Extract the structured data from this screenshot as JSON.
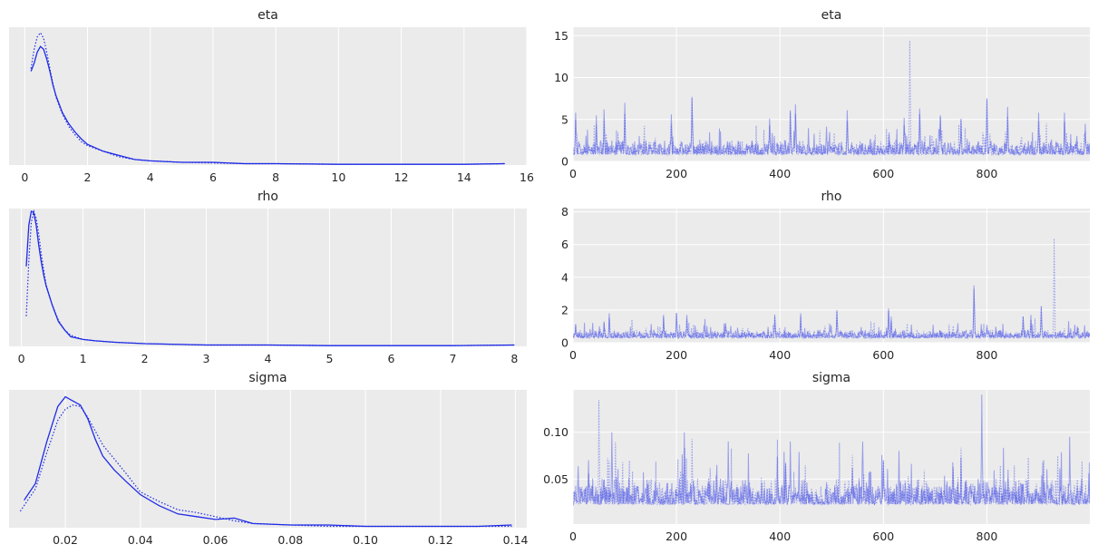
{
  "chart_data": [
    {
      "type": "line",
      "title": "eta",
      "kind": "kde",
      "xlim": [
        -0.5,
        16
      ],
      "ylim": [
        0,
        1
      ],
      "xticks": [
        0,
        2,
        4,
        6,
        8,
        10,
        12,
        14,
        16
      ],
      "yticks": [],
      "grid": "on",
      "series": [
        {
          "style": "solid",
          "x": [
            0.2,
            0.3,
            0.4,
            0.5,
            0.6,
            0.7,
            0.8,
            0.9,
            1.0,
            1.2,
            1.4,
            1.6,
            1.8,
            2.0,
            2.5,
            3.0,
            3.5,
            4.0,
            5.0,
            6.0,
            7.0,
            8.0,
            10.0,
            12.0,
            14.0,
            15.3
          ],
          "y": [
            0.68,
            0.74,
            0.82,
            0.86,
            0.84,
            0.77,
            0.68,
            0.58,
            0.5,
            0.38,
            0.3,
            0.24,
            0.19,
            0.15,
            0.1,
            0.07,
            0.04,
            0.03,
            0.02,
            0.02,
            0.01,
            0.01,
            0.005,
            0.005,
            0.005,
            0.01
          ]
        },
        {
          "style": "dotted",
          "x": [
            0.2,
            0.3,
            0.4,
            0.5,
            0.6,
            0.7,
            0.8,
            0.9,
            1.0,
            1.2,
            1.4,
            1.6,
            1.8,
            2.0,
            2.5,
            3.0,
            3.5,
            4.0,
            5.0,
            6.0,
            7.0,
            8.0,
            10.0,
            12.0,
            14.0,
            15.3
          ],
          "y": [
            0.7,
            0.84,
            0.93,
            0.96,
            0.92,
            0.82,
            0.7,
            0.59,
            0.49,
            0.37,
            0.28,
            0.22,
            0.17,
            0.14,
            0.1,
            0.06,
            0.04,
            0.03,
            0.02,
            0.015,
            0.01,
            0.01,
            0.005,
            0.005,
            0.005,
            0.01
          ]
        }
      ]
    },
    {
      "type": "line",
      "title": "eta",
      "kind": "trace",
      "xlim": [
        0,
        999
      ],
      "ylim": [
        0,
        16
      ],
      "xticks": [
        0,
        200,
        400,
        600,
        800
      ],
      "yticks": [
        0,
        5,
        10,
        15
      ],
      "grid": "on",
      "seed": 11,
      "base": 1.0,
      "noise": 1.2,
      "spikes": [
        [
          5,
          5.8
        ],
        [
          45,
          5.5
        ],
        [
          60,
          6.2
        ],
        [
          100,
          7.0
        ],
        [
          190,
          5.6
        ],
        [
          230,
          7.6
        ],
        [
          380,
          5.1
        ],
        [
          420,
          6.1
        ],
        [
          430,
          6.8
        ],
        [
          530,
          6.1
        ],
        [
          640,
          5.2
        ],
        [
          651,
          15.3
        ],
        [
          670,
          6.3
        ],
        [
          710,
          5.5
        ],
        [
          750,
          5.0
        ],
        [
          800,
          7.5
        ],
        [
          840,
          6.5
        ],
        [
          900,
          5.8
        ],
        [
          950,
          5.8
        ],
        [
          990,
          4.5
        ]
      ]
    },
    {
      "type": "line",
      "title": "rho",
      "kind": "kde",
      "xlim": [
        -0.2,
        8.2
      ],
      "ylim": [
        0,
        1
      ],
      "xticks": [
        0,
        1,
        2,
        3,
        4,
        5,
        6,
        7,
        8
      ],
      "yticks": [],
      "grid": "on",
      "series": [
        {
          "style": "solid",
          "x": [
            0.08,
            0.12,
            0.16,
            0.2,
            0.24,
            0.28,
            0.32,
            0.36,
            0.4,
            0.5,
            0.6,
            0.7,
            0.8,
            1.0,
            1.2,
            1.5,
            2.0,
            3.0,
            4.0,
            5.0,
            6.0,
            7.0,
            8.0
          ],
          "y": [
            0.58,
            0.88,
            0.98,
            0.97,
            0.88,
            0.74,
            0.62,
            0.52,
            0.44,
            0.3,
            0.18,
            0.12,
            0.07,
            0.05,
            0.04,
            0.03,
            0.02,
            0.01,
            0.01,
            0.005,
            0.005,
            0.005,
            0.01
          ]
        },
        {
          "style": "dotted",
          "x": [
            0.08,
            0.12,
            0.16,
            0.2,
            0.24,
            0.28,
            0.32,
            0.36,
            0.4,
            0.5,
            0.6,
            0.7,
            0.8,
            1.0,
            1.2,
            1.5,
            2.0,
            3.0,
            4.0,
            5.0,
            6.0,
            7.0,
            8.0
          ],
          "y": [
            0.22,
            0.62,
            0.9,
            0.98,
            0.93,
            0.82,
            0.68,
            0.56,
            0.45,
            0.3,
            0.19,
            0.12,
            0.08,
            0.05,
            0.04,
            0.03,
            0.02,
            0.01,
            0.01,
            0.005,
            0.005,
            0.005,
            0.01
          ]
        }
      ]
    },
    {
      "type": "line",
      "title": "rho",
      "kind": "trace",
      "xlim": [
        0,
        999
      ],
      "ylim": [
        0,
        8.2
      ],
      "xticks": [
        0,
        200,
        400,
        600,
        800
      ],
      "yticks": [
        0,
        2,
        4,
        6,
        8
      ],
      "grid": "on",
      "seed": 23,
      "base": 0.35,
      "noise": 0.35,
      "spikes": [
        [
          5,
          1.1
        ],
        [
          60,
          1.3
        ],
        [
          70,
          1.8
        ],
        [
          175,
          1.7
        ],
        [
          200,
          1.8
        ],
        [
          220,
          1.7
        ],
        [
          295,
          1.2
        ],
        [
          390,
          1.7
        ],
        [
          440,
          1.8
        ],
        [
          510,
          2.0
        ],
        [
          610,
          2.1
        ],
        [
          615,
          1.6
        ],
        [
          775,
          3.5
        ],
        [
          800,
          1.1
        ],
        [
          870,
          1.6
        ],
        [
          885,
          1.7
        ],
        [
          905,
          2.2
        ],
        [
          930,
          7.9
        ],
        [
          975,
          1.0
        ]
      ]
    },
    {
      "type": "line",
      "title": "sigma",
      "kind": "kde",
      "xlim": [
        0.005,
        0.143
      ],
      "ylim": [
        0,
        1
      ],
      "xticks": [
        0.02,
        0.04,
        0.06,
        0.08,
        0.1,
        0.12,
        0.14
      ],
      "xticklabels": [
        "0.02",
        "0.04",
        "0.06",
        "0.08",
        "0.10",
        "0.12",
        "0.14"
      ],
      "yticks": [],
      "grid": "on",
      "series": [
        {
          "style": "solid",
          "x": [
            0.009,
            0.012,
            0.015,
            0.018,
            0.02,
            0.022,
            0.024,
            0.026,
            0.028,
            0.03,
            0.033,
            0.036,
            0.04,
            0.045,
            0.05,
            0.055,
            0.06,
            0.065,
            0.07,
            0.08,
            0.09,
            0.1,
            0.11,
            0.12,
            0.13,
            0.139
          ],
          "y": [
            0.2,
            0.32,
            0.62,
            0.88,
            0.95,
            0.92,
            0.89,
            0.79,
            0.64,
            0.52,
            0.42,
            0.34,
            0.24,
            0.16,
            0.1,
            0.08,
            0.06,
            0.07,
            0.03,
            0.02,
            0.02,
            0.01,
            0.01,
            0.01,
            0.01,
            0.02
          ]
        },
        {
          "style": "dotted",
          "x": [
            0.008,
            0.012,
            0.015,
            0.018,
            0.02,
            0.022,
            0.024,
            0.026,
            0.028,
            0.03,
            0.033,
            0.036,
            0.04,
            0.045,
            0.05,
            0.055,
            0.06,
            0.065,
            0.07,
            0.08,
            0.09,
            0.1,
            0.11,
            0.12,
            0.13,
            0.139
          ],
          "y": [
            0.12,
            0.28,
            0.54,
            0.78,
            0.86,
            0.89,
            0.88,
            0.8,
            0.7,
            0.6,
            0.5,
            0.4,
            0.26,
            0.19,
            0.13,
            0.11,
            0.08,
            0.05,
            0.03,
            0.02,
            0.01,
            0.01,
            0.01,
            0.01,
            0.01,
            0.01
          ]
        }
      ]
    },
    {
      "type": "line",
      "title": "sigma",
      "kind": "trace",
      "xlim": [
        0,
        999
      ],
      "ylim": [
        0.002,
        0.145
      ],
      "xticks": [
        0,
        200,
        400,
        600,
        800
      ],
      "yticks": [
        0.05,
        0.1
      ],
      "yticklabels": [
        "0.05",
        "0.10"
      ],
      "grid": "on",
      "seed": 37,
      "base": 0.026,
      "noise": 0.02,
      "spikes": [
        [
          30,
          0.07
        ],
        [
          50,
          0.13
        ],
        [
          75,
          0.1
        ],
        [
          82,
          0.11
        ],
        [
          215,
          0.1
        ],
        [
          230,
          0.09
        ],
        [
          300,
          0.09
        ],
        [
          395,
          0.12
        ],
        [
          420,
          0.09
        ],
        [
          540,
          0.08
        ],
        [
          560,
          0.09
        ],
        [
          600,
          0.07
        ],
        [
          630,
          0.08
        ],
        [
          750,
          0.09
        ],
        [
          790,
          0.14
        ],
        [
          880,
          0.085
        ],
        [
          960,
          0.095
        ]
      ]
    }
  ]
}
